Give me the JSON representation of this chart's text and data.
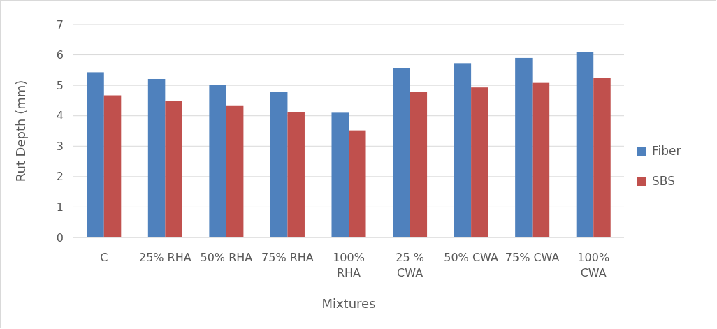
{
  "chart_data": {
    "type": "bar",
    "xlabel": "Mixtures",
    "ylabel": "Rut Depth (mm)",
    "categories": [
      "C",
      "25% RHA",
      "50% RHA",
      "75% RHA",
      "100% RHA",
      "25 % CWA",
      "50% CWA",
      "75% CWA",
      "100% CWA"
    ],
    "series": [
      {
        "name": "Fiber",
        "color": "#4f81bd",
        "values": [
          5.43,
          5.21,
          5.02,
          4.78,
          4.1,
          5.57,
          5.73,
          5.9,
          6.1
        ]
      },
      {
        "name": "SBS",
        "color": "#c0504d",
        "values": [
          4.67,
          4.49,
          4.32,
          4.11,
          3.52,
          4.79,
          4.93,
          5.08,
          5.25
        ]
      }
    ],
    "ylim": [
      0,
      7
    ],
    "yticks": [
      0,
      1,
      2,
      3,
      4,
      5,
      6,
      7
    ],
    "grid": "y",
    "legend": "right"
  }
}
